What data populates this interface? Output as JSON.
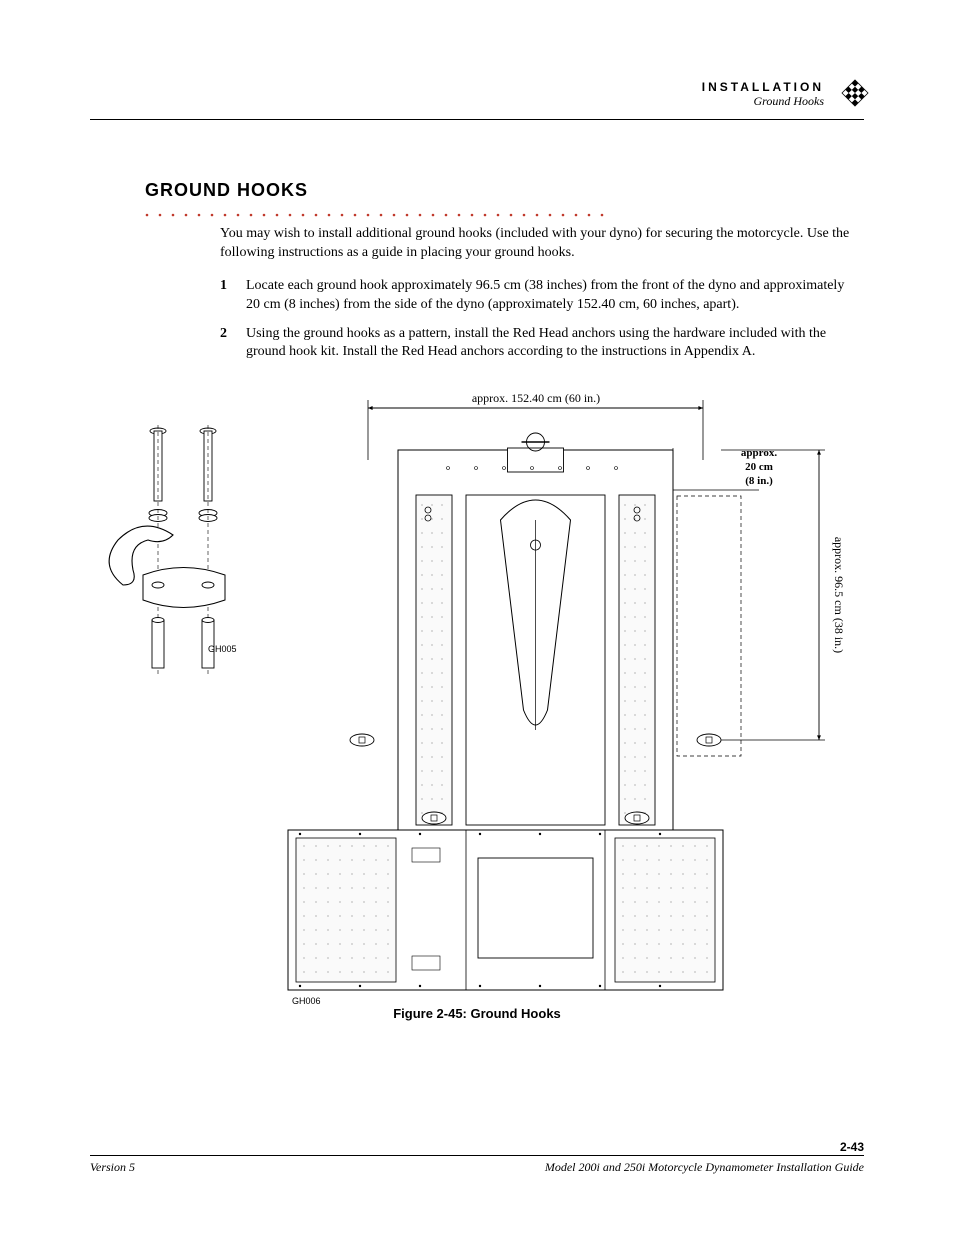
{
  "header": {
    "chapter": "INSTALLATION",
    "section": "Ground Hooks"
  },
  "section_title": "GROUND HOOKS",
  "dotted_rule": {
    "color": "#c0392b",
    "dot_radius": 1.3,
    "spacing": 13,
    "count": 36
  },
  "intro_text": "You may wish to install additional ground hooks (included with your dyno) for securing the motorcycle. Use the following instructions as a guide in placing your ground hooks.",
  "steps": [
    "Locate each ground hook approximately 96.5 cm (38 inches) from the front of the dyno and approximately 20 cm (8 inches) from the side of the dyno (approximately 152.40 cm, 60 inches, apart).",
    "Using the ground hooks as a pattern, install the Red Head anchors using the hardware included with the ground hook kit. Install the Red Head anchors according to the instructions in Appendix A."
  ],
  "figure": {
    "caption": "Figure 2-45: Ground Hooks",
    "dim_top": "approx. 152.40 cm (60 in.)",
    "dim_right_top_l1": "approx.",
    "dim_right_top_l2": "20 cm",
    "dim_right_top_l3": "(8 in.)",
    "dim_right_side": "approx. 96.5 cm (38 in.)",
    "label_left": "GH005",
    "label_bottom": "GH006",
    "colors": {
      "stroke": "#000000",
      "fill": "#ffffff",
      "light_fill": "#fafafa"
    }
  },
  "footer": {
    "page": "2-43",
    "left": "Version 5",
    "right": "Model 200i and 250i Motorcycle Dynamometer Installation Guide"
  }
}
